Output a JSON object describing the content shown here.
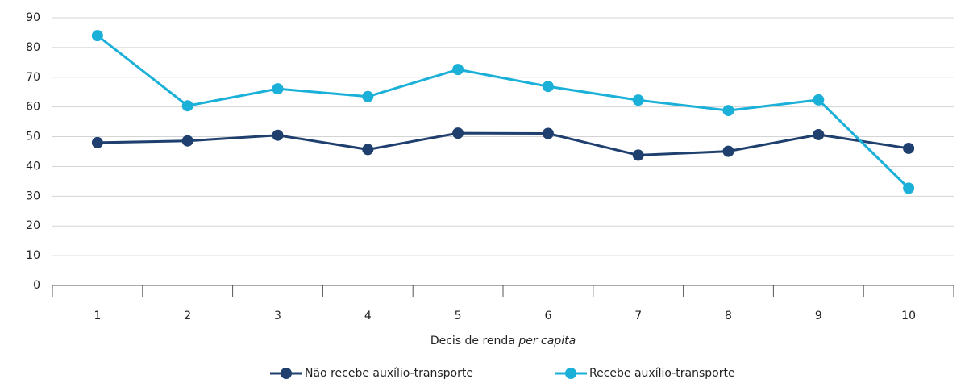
{
  "chart_data": {
    "type": "line",
    "categories": [
      "1",
      "2",
      "3",
      "4",
      "5",
      "6",
      "7",
      "8",
      "9",
      "10"
    ],
    "series": [
      {
        "name": "Não recebe auxílio-transporte",
        "color": "#1f3f6e",
        "values": [
          48,
          48.6,
          50.5,
          45.7,
          51.2,
          51.1,
          43.8,
          45.1,
          50.7,
          46.1
        ]
      },
      {
        "name": "Recebe auxílio-transporte",
        "color": "#1ab0d8",
        "values": [
          84,
          60.4,
          66.1,
          63.5,
          72.6,
          66.9,
          62.3,
          58.8,
          62.4,
          32.7
        ]
      }
    ],
    "x_label": "Decis de renda",
    "x_label_italic": "per capita",
    "ylim": [
      0,
      90
    ],
    "yticks": [
      0,
      10,
      20,
      30,
      40,
      50,
      60,
      70,
      80,
      90
    ],
    "grid": true,
    "legend": "bottom"
  }
}
